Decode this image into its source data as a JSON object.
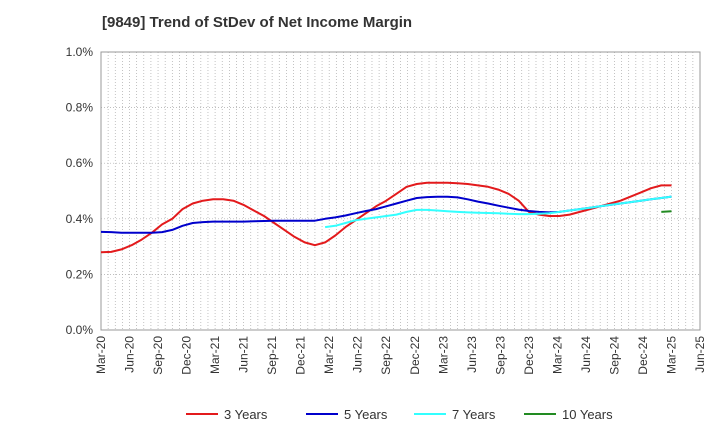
{
  "title": "[9849]  Trend of StDev of Net Income Margin",
  "chart_data": {
    "type": "line",
    "title": "[9849]  Trend of StDev of Net Income Margin",
    "xlabel": "",
    "ylabel": "",
    "ylim": [
      0,
      1.0
    ],
    "y_ticks": [
      "0.0%",
      "0.2%",
      "0.4%",
      "0.6%",
      "0.8%",
      "1.0%"
    ],
    "x_ticks": [
      "Mar-20",
      "Jun-20",
      "Sep-20",
      "Dec-20",
      "Mar-21",
      "Jun-21",
      "Sep-21",
      "Dec-21",
      "Mar-22",
      "Jun-22",
      "Sep-22",
      "Dec-22",
      "Mar-23",
      "Jun-23",
      "Sep-23",
      "Dec-23",
      "Mar-24",
      "Jun-24",
      "Sep-24",
      "Dec-24",
      "Mar-25",
      "Jun-25"
    ],
    "grid": true,
    "legend_position": "bottom",
    "series": [
      {
        "name": "3 Years",
        "color": "#e31a1c",
        "start_index": 0,
        "values": [
          0.28,
          0.281,
          0.29,
          0.305,
          0.325,
          0.35,
          0.38,
          0.4,
          0.435,
          0.455,
          0.465,
          0.47,
          0.47,
          0.465,
          0.45,
          0.43,
          0.41,
          0.385,
          0.36,
          0.335,
          0.315,
          0.305,
          0.315,
          0.34,
          0.37,
          0.395,
          0.42,
          0.445,
          0.465,
          0.49,
          0.515,
          0.525,
          0.53,
          0.53,
          0.53,
          0.528,
          0.525,
          0.52,
          0.515,
          0.505,
          0.49,
          0.465,
          0.425,
          0.415,
          0.41,
          0.41,
          0.415,
          0.425,
          0.435,
          0.445,
          0.455,
          0.465,
          0.48,
          0.495,
          0.51,
          0.52,
          0.52
        ]
      },
      {
        "name": "5 Years",
        "color": "#0000cc",
        "start_index": 0,
        "values": [
          0.353,
          0.352,
          0.35,
          0.35,
          0.35,
          0.35,
          0.352,
          0.36,
          0.375,
          0.385,
          0.388,
          0.39,
          0.39,
          0.39,
          0.39,
          0.391,
          0.392,
          0.393,
          0.393,
          0.393,
          0.393,
          0.393,
          0.4,
          0.405,
          0.412,
          0.42,
          0.428,
          0.435,
          0.445,
          0.455,
          0.465,
          0.475,
          0.478,
          0.479,
          0.479,
          0.477,
          0.47,
          0.462,
          0.455,
          0.447,
          0.44,
          0.433,
          0.428,
          0.425,
          0.423,
          0.425,
          0.43,
          0.435,
          0.44,
          0.445,
          0.45,
          0.455,
          0.46,
          0.465,
          0.47,
          0.475,
          0.48
        ]
      },
      {
        "name": "7 Years",
        "color": "#33ffff",
        "start_index": 22,
        "values": [
          0.37,
          0.375,
          0.385,
          0.395,
          0.4,
          0.405,
          0.41,
          0.415,
          0.425,
          0.432,
          0.432,
          0.43,
          0.427,
          0.425,
          0.423,
          0.422,
          0.421,
          0.42,
          0.418,
          0.417,
          0.417,
          0.418,
          0.42,
          0.425,
          0.43,
          0.435,
          0.44,
          0.445,
          0.45,
          0.455,
          0.46,
          0.465,
          0.47,
          0.475,
          0.48
        ]
      },
      {
        "name": "10 Years",
        "color": "#228b22",
        "start_index": 55,
        "values": [
          0.425,
          0.427
        ]
      }
    ]
  }
}
